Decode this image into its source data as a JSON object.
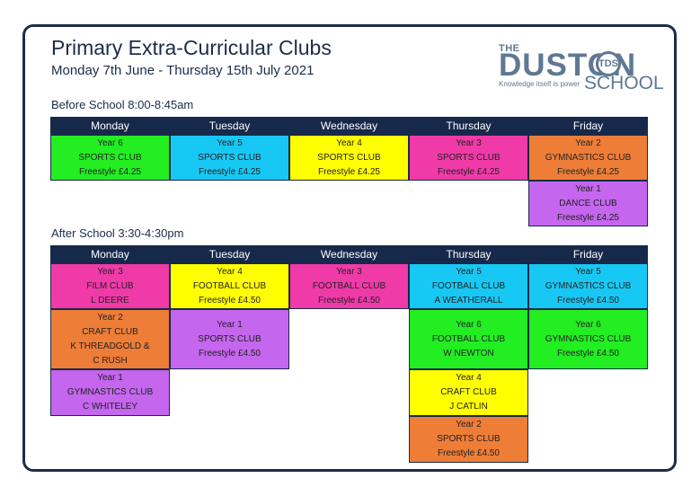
{
  "header": {
    "title": "Primary Extra-Curricular Clubs",
    "subtitle": "Monday 7th June - Thursday 15th July 2021"
  },
  "logo": {
    "the": "THE",
    "duston": "DUSTON",
    "tds": "TDS",
    "school": "SCHOOL",
    "tagline": "Knowledge itself is power"
  },
  "before_school": {
    "label": "Before School 8:00-8:45am",
    "days": [
      "Monday",
      "Tuesday",
      "Wednesday",
      "Thursday",
      "Friday"
    ],
    "cells": [
      {
        "year": "Year 6",
        "club": "SPORTS CLUB",
        "detail": "Freestyle £4.25"
      },
      {
        "year": "Year 5",
        "club": "SPORTS CLUB",
        "detail": "Freestyle £4.25"
      },
      {
        "year": "Year 4",
        "club": "SPORTS CLUB",
        "detail": "Freestyle £4.25"
      },
      {
        "year": "Year 3",
        "club": "SPORTS CLUB",
        "detail": "Freestyle £4.25"
      },
      {
        "year": "Year 2",
        "club": "GYMNASTICS CLUB",
        "detail": "Freestyle £4.25"
      },
      {
        "year": "Year 1",
        "club": "DANCE CLUB",
        "detail": "Freestyle £4.25"
      }
    ]
  },
  "after_school": {
    "label": "After School 3:30-4:30pm",
    "days": [
      "Monday",
      "Tuesday",
      "Wednesday",
      "Thursday",
      "Friday"
    ],
    "cells": [
      {
        "year": "Year 3",
        "club": "FILM CLUB",
        "detail": "L DEERE"
      },
      {
        "year": "Year 2",
        "club": "CRAFT CLUB",
        "detail": "K THREADGOLD &",
        "detail2": "C RUSH"
      },
      {
        "year": "Year 1",
        "club": "GYMNASTICS CLUB",
        "detail": "C WHITELEY"
      },
      {
        "year": "Year 4",
        "club": "FOOTBALL CLUB",
        "detail": "Freestyle £4.50"
      },
      {
        "year": "Year 1",
        "club": "SPORTS CLUB",
        "detail": "Freestyle £4.50"
      },
      {
        "year": "Year 3",
        "club": "FOOTBALL CLUB",
        "detail": "Freestyle £4.50"
      },
      {
        "year": "Year 5",
        "club": "FOOTBALL CLUB",
        "detail": "A WEATHERALL"
      },
      {
        "year": "Year 6",
        "club": "FOOTBALL CLUB",
        "detail": "W NEWTON"
      },
      {
        "year": "Year 4",
        "club": "CRAFT CLUB",
        "detail": "J CATLIN"
      },
      {
        "year": "Year 2",
        "club": "SPORTS CLUB",
        "detail": "Freestyle £4.50"
      },
      {
        "year": "Year 5",
        "club": "GYMNASTICS CLUB",
        "detail": "Freestyle £4.50"
      },
      {
        "year": "Year 6",
        "club": "GYMNASTICS CLUB",
        "detail": "Freestyle £4.50"
      }
    ]
  },
  "colors": {
    "navy": "#17294a",
    "green": "#22ee22",
    "cyan": "#18c8f4",
    "yellow": "#ffff00",
    "pink": "#f03aa8",
    "orange": "#ee7d37",
    "purple": "#c566ee"
  }
}
